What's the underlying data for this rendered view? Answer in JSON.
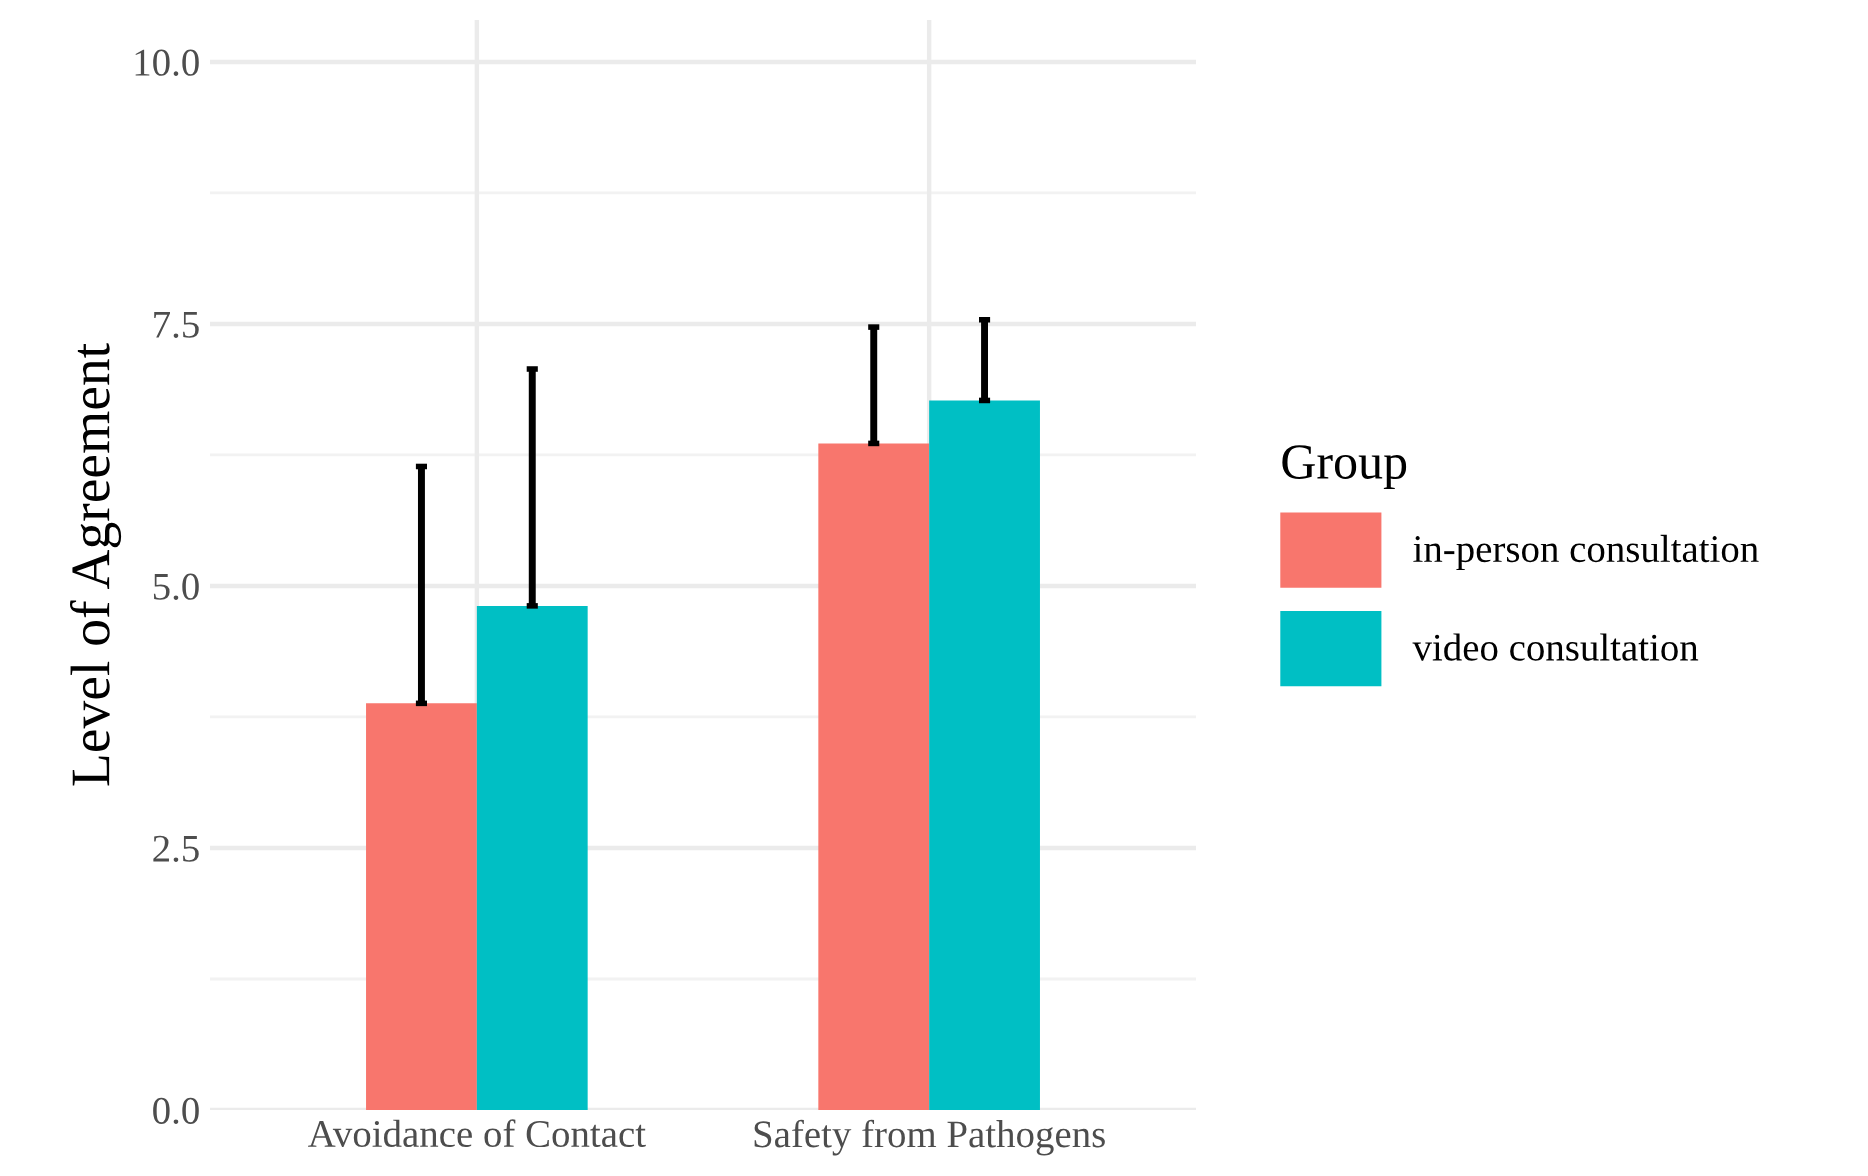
{
  "chart_data": {
    "type": "bar",
    "ylabel": "Level of Agreement",
    "legend_title": "Group",
    "categories": [
      "Avoidance of Contact",
      "Safety from Pathogens"
    ],
    "series": [
      {
        "name": "in-person consultation",
        "color": "#f8766d",
        "values": [
          3.88,
          6.36
        ],
        "errors": [
          [
            3.88,
            6.14
          ],
          [
            6.36,
            7.47
          ]
        ]
      },
      {
        "name": "video consultation",
        "color": "#00bfc4",
        "values": [
          4.81,
          6.77
        ],
        "errors": [
          [
            4.81,
            7.07
          ],
          [
            6.77,
            7.54
          ]
        ]
      }
    ],
    "ylim": [
      0,
      10.4
    ],
    "yticks": [
      {
        "value": 0,
        "label": "0.0"
      },
      {
        "value": 2.5,
        "label": "2.5"
      },
      {
        "value": 5,
        "label": "5.0"
      },
      {
        "value": 7.5,
        "label": "7.5"
      },
      {
        "value": 10,
        "label": "10.0"
      }
    ],
    "grid": true,
    "legend": "right"
  }
}
